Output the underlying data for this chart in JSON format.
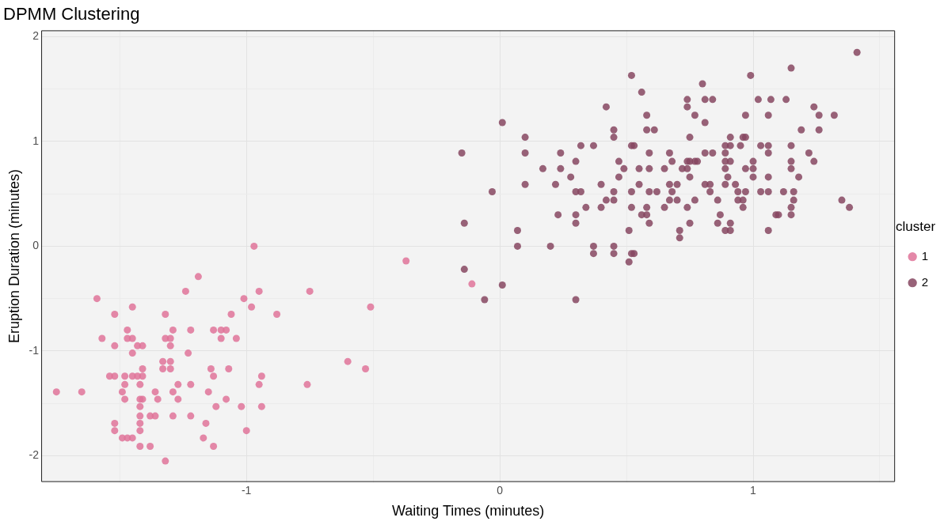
{
  "chart_data": {
    "type": "scatter",
    "title": "DPMM Clustering",
    "xlabel": "Waiting Times (minutes)",
    "ylabel": "Eruption Duration (minutes)",
    "legend_title": "cluster",
    "legend": "right",
    "grid": true,
    "marker": "circle",
    "xlim": [
      -1.81,
      1.56
    ],
    "ylim": [
      -2.25,
      2.06
    ],
    "xticks": [
      {
        "value": -1.5,
        "label": null
      },
      -1,
      {
        "value": -0.5,
        "label": null
      },
      0,
      {
        "value": 0.5,
        "label": null
      },
      1,
      {
        "value": 1.5,
        "label": null
      }
    ],
    "yticks": [
      -2,
      {
        "value": -1.5,
        "label": null
      },
      -1,
      {
        "value": -0.5,
        "label": null
      },
      0,
      {
        "value": 0.5,
        "label": null
      },
      1,
      {
        "value": 1.5,
        "label": null
      },
      2
    ],
    "series": [
      {
        "name": "1",
        "color": "#df7399",
        "x": [
          -0.97,
          -1.19,
          -1.24,
          -0.95,
          -0.75,
          -1.59,
          -1.01,
          -1.45,
          -0.98,
          -0.51,
          -1.52,
          -1.32,
          -1.06,
          -0.88,
          -1.47,
          -1.29,
          -1.22,
          -1.13,
          -1.1,
          -1.08,
          -1.57,
          -1.47,
          -1.45,
          -1.32,
          -1.3,
          -1.1,
          -1.04,
          -1.52,
          -1.43,
          -1.41,
          -1.3,
          -1.45,
          -1.23,
          -1.33,
          -1.3,
          -0.6,
          -1.41,
          -1.33,
          -1.3,
          -1.14,
          -1.07,
          -0.53,
          -1.54,
          -1.52,
          -1.48,
          -1.45,
          -1.43,
          -1.41,
          -1.13,
          -0.94,
          -1.48,
          -1.42,
          -1.27,
          -1.22,
          -0.95,
          -0.76,
          -1.65,
          -1.49,
          -1.36,
          -1.29,
          -1.15,
          -1.48,
          -1.42,
          -1.41,
          -1.35,
          -1.27,
          -1.08,
          -1.42,
          -1.12,
          -1.02,
          -0.94,
          -1.42,
          -1.38,
          -1.36,
          -1.29,
          -1.22,
          -1.52,
          -1.42,
          -1.16,
          -1.52,
          -1.42,
          -1.0,
          -1.49,
          -1.47,
          -1.45,
          -1.17,
          -1.42,
          -1.38,
          -1.13,
          -1.32,
          -1.75,
          -0.37,
          -0.11
        ],
        "values": [
          0.0,
          -0.29,
          -0.43,
          -0.43,
          -0.43,
          -0.5,
          -0.5,
          -0.58,
          -0.58,
          -0.58,
          -0.65,
          -0.65,
          -0.65,
          -0.65,
          -0.8,
          -0.8,
          -0.8,
          -0.8,
          -0.8,
          -0.8,
          -0.88,
          -0.88,
          -0.88,
          -0.88,
          -0.88,
          -0.88,
          -0.88,
          -0.95,
          -0.95,
          -0.95,
          -0.95,
          -1.02,
          -1.02,
          -1.1,
          -1.1,
          -1.1,
          -1.17,
          -1.17,
          -1.17,
          -1.17,
          -1.17,
          -1.17,
          -1.24,
          -1.24,
          -1.24,
          -1.24,
          -1.24,
          -1.24,
          -1.24,
          -1.24,
          -1.32,
          -1.32,
          -1.32,
          -1.32,
          -1.32,
          -1.32,
          -1.39,
          -1.39,
          -1.39,
          -1.39,
          -1.39,
          -1.46,
          -1.46,
          -1.46,
          -1.46,
          -1.46,
          -1.46,
          -1.53,
          -1.53,
          -1.53,
          -1.53,
          -1.62,
          -1.62,
          -1.62,
          -1.62,
          -1.62,
          -1.69,
          -1.69,
          -1.69,
          -1.76,
          -1.76,
          -1.76,
          -1.83,
          -1.83,
          -1.83,
          -1.83,
          -1.91,
          -1.91,
          -1.91,
          -2.05,
          -1.39,
          -0.14,
          -0.36
        ]
      },
      {
        "name": "2",
        "color": "#864760",
        "x": [
          0.52,
          0.56,
          0.42,
          0.01,
          0.58,
          0.45,
          0.58,
          0.61,
          0.1,
          0.45,
          0.32,
          0.37,
          0.52,
          0.53,
          -0.15,
          0.1,
          0.24,
          0.59,
          0.3,
          0.47,
          0.17,
          0.24,
          0.49,
          0.55,
          0.59,
          0.28,
          0.47,
          0.1,
          0.22,
          0.4,
          0.55,
          -0.03,
          0.3,
          0.32,
          0.45,
          0.52,
          0.59,
          0.42,
          0.45,
          0.34,
          0.4,
          0.52,
          0.58,
          -0.14,
          0.23,
          0.3,
          0.3,
          0.56,
          0.58,
          0.59,
          0.07,
          0.51,
          0.07,
          0.2,
          0.37,
          0.45,
          0.37,
          0.45,
          0.52,
          0.53,
          0.51,
          -0.14,
          0.01,
          -0.06,
          0.3,
          1.41,
          1.15,
          0.99,
          0.8,
          0.74,
          0.81,
          0.84,
          1.02,
          1.07,
          1.13,
          0.74,
          1.24,
          0.77,
          0.97,
          1.06,
          1.26,
          1.32,
          0.81,
          1.19,
          1.26,
          0.75,
          0.91,
          0.96,
          0.97,
          0.89,
          0.91,
          0.95,
          1.03,
          1.06,
          1.15,
          0.67,
          0.81,
          0.84,
          0.89,
          1.06,
          1.22,
          0.68,
          0.74,
          0.75,
          0.77,
          0.78,
          0.89,
          0.91,
          1.0,
          1.15,
          1.24,
          0.65,
          0.72,
          0.74,
          0.89,
          0.97,
          1.0,
          1.15,
          0.75,
          0.9,
          1.0,
          1.06,
          1.18,
          0.67,
          0.7,
          0.81,
          0.83,
          0.89,
          0.93,
          0.62,
          0.68,
          0.83,
          0.94,
          0.97,
          1.03,
          1.06,
          1.12,
          1.16,
          0.67,
          0.7,
          0.77,
          0.86,
          0.94,
          0.96,
          1.16,
          1.35,
          0.65,
          0.74,
          0.96,
          1.15,
          1.38,
          0.87,
          1.09,
          1.1,
          1.15,
          0.75,
          0.86,
          0.91,
          0.71,
          0.89,
          0.91,
          1.06,
          0.71
        ],
        "values": [
          1.63,
          1.47,
          1.33,
          1.18,
          1.25,
          1.11,
          1.11,
          1.11,
          1.04,
          1.04,
          0.96,
          0.96,
          0.96,
          0.96,
          0.89,
          0.89,
          0.89,
          0.89,
          0.81,
          0.81,
          0.74,
          0.74,
          0.74,
          0.74,
          0.74,
          0.66,
          0.66,
          0.59,
          0.59,
          0.59,
          0.59,
          0.52,
          0.52,
          0.52,
          0.52,
          0.52,
          0.52,
          0.44,
          0.44,
          0.37,
          0.37,
          0.37,
          0.37,
          0.22,
          0.3,
          0.3,
          0.22,
          0.3,
          0.3,
          0.22,
          0.15,
          0.15,
          0.0,
          0.0,
          0.0,
          0.0,
          -0.07,
          -0.07,
          -0.07,
          -0.07,
          -0.15,
          -0.22,
          -0.37,
          -0.51,
          -0.51,
          1.85,
          1.7,
          1.63,
          1.55,
          1.4,
          1.4,
          1.4,
          1.4,
          1.4,
          1.4,
          1.33,
          1.33,
          1.25,
          1.25,
          1.25,
          1.25,
          1.25,
          1.18,
          1.11,
          1.11,
          1.04,
          1.04,
          1.04,
          1.04,
          0.96,
          0.96,
          0.96,
          0.96,
          0.96,
          0.96,
          0.89,
          0.89,
          0.89,
          0.89,
          0.89,
          0.89,
          0.81,
          0.81,
          0.81,
          0.81,
          0.81,
          0.81,
          0.81,
          0.81,
          0.81,
          0.81,
          0.74,
          0.74,
          0.74,
          0.74,
          0.74,
          0.74,
          0.74,
          0.66,
          0.66,
          0.66,
          0.66,
          0.66,
          0.59,
          0.59,
          0.59,
          0.59,
          0.59,
          0.59,
          0.52,
          0.52,
          0.52,
          0.52,
          0.52,
          0.52,
          0.52,
          0.52,
          0.52,
          0.44,
          0.44,
          0.44,
          0.44,
          0.44,
          0.44,
          0.44,
          0.44,
          0.37,
          0.37,
          0.37,
          0.37,
          0.37,
          0.3,
          0.3,
          0.3,
          0.3,
          0.22,
          0.22,
          0.22,
          0.15,
          0.15,
          0.15,
          0.15,
          0.08
        ]
      }
    ]
  }
}
